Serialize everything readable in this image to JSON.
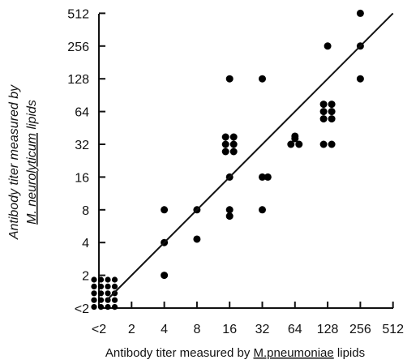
{
  "chart_data": {
    "type": "scatter",
    "title": "",
    "xlabel_parts": [
      "Antibody titer measured by ",
      "M.pneumoniae",
      " lipids"
    ],
    "ylabel_line1": "Antibody titer measured by",
    "ylabel_line2_parts": [
      "M. neurolyticum",
      " lipids"
    ],
    "x_ticks": [
      "<2",
      "2",
      "4",
      "8",
      "16",
      "32",
      "64",
      "128",
      "256",
      "512"
    ],
    "y_ticks": [
      "<2",
      "2",
      "4",
      "8",
      "16",
      "32",
      "64",
      "128",
      "256",
      "512"
    ],
    "x_scale": "log2",
    "y_scale": "log2",
    "grid": false,
    "points": [
      {
        "x": "<2",
        "y": "<2",
        "count": 20
      },
      {
        "x": 4,
        "y": 8
      },
      {
        "x": 4,
        "y": 4
      },
      {
        "x": 4,
        "y": 2
      },
      {
        "x": 8,
        "y": 8
      },
      {
        "x": 8,
        "y": 4.3
      },
      {
        "x": 16,
        "y": 128
      },
      {
        "x": 16,
        "y": 32
      },
      {
        "x": 16,
        "y": 32
      },
      {
        "x": 16,
        "y": 32
      },
      {
        "x": 16,
        "y": 32
      },
      {
        "x": 16,
        "y": 32
      },
      {
        "x": 16,
        "y": 32
      },
      {
        "x": 16,
        "y": 16
      },
      {
        "x": 16,
        "y": 8
      },
      {
        "x": 16,
        "y": 7
      },
      {
        "x": 32,
        "y": 128
      },
      {
        "x": 32,
        "y": 16
      },
      {
        "x": 36,
        "y": 16
      },
      {
        "x": 32,
        "y": 8
      },
      {
        "x": 64,
        "y": 32
      },
      {
        "x": 64,
        "y": 32
      },
      {
        "x": 64,
        "y": 32
      },
      {
        "x": 64,
        "y": 38
      },
      {
        "x": 128,
        "y": 256
      },
      {
        "x": 128,
        "y": 64
      },
      {
        "x": 128,
        "y": 64
      },
      {
        "x": 128,
        "y": 64
      },
      {
        "x": 128,
        "y": 64
      },
      {
        "x": 128,
        "y": 64
      },
      {
        "x": 128,
        "y": 64
      },
      {
        "x": 128,
        "y": 32
      },
      {
        "x": 128,
        "y": 32
      },
      {
        "x": 256,
        "y": 512
      },
      {
        "x": 256,
        "y": 256
      },
      {
        "x": 256,
        "y": 128
      }
    ],
    "regression_line": {
      "from": [
        1.2,
        1.2
      ],
      "to": [
        512,
        512
      ]
    }
  }
}
